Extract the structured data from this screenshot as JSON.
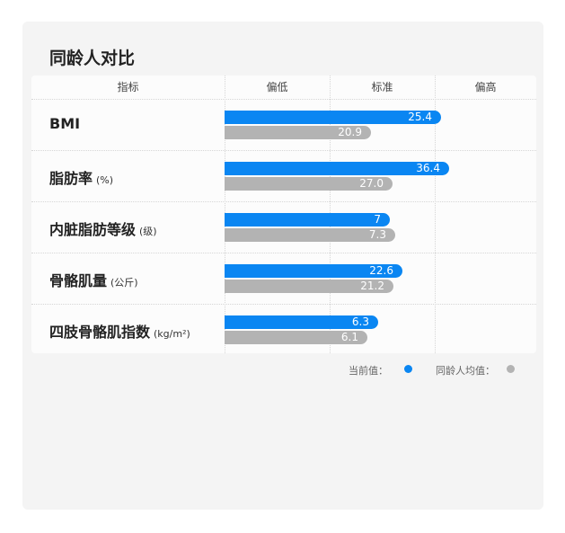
{
  "title": "同龄人对比",
  "chart_data": {
    "type": "bar",
    "columns": [
      "指标",
      "偏低",
      "标准",
      "偏高"
    ],
    "categories": [
      {
        "name": "BMI",
        "unit": ""
      },
      {
        "name": "脂肪率",
        "unit": "(%)"
      },
      {
        "name": "内脏脂肪等级",
        "unit": "(级)"
      },
      {
        "name": "骨骼肌量",
        "unit": "(公斤)"
      },
      {
        "name": "四肢骨骼肌指数",
        "unit": "(kg/m²)"
      }
    ],
    "series": [
      {
        "name": "当前值：",
        "color": "#0a86f2",
        "values": [
          "25.4",
          "36.4",
          "7",
          "22.6",
          "6.3"
        ]
      },
      {
        "name": "同龄人均值：",
        "color": "#b3b3b3",
        "values": [
          "20.9",
          "27.0",
          "7.3",
          "21.2",
          "6.1"
        ]
      }
    ]
  }
}
